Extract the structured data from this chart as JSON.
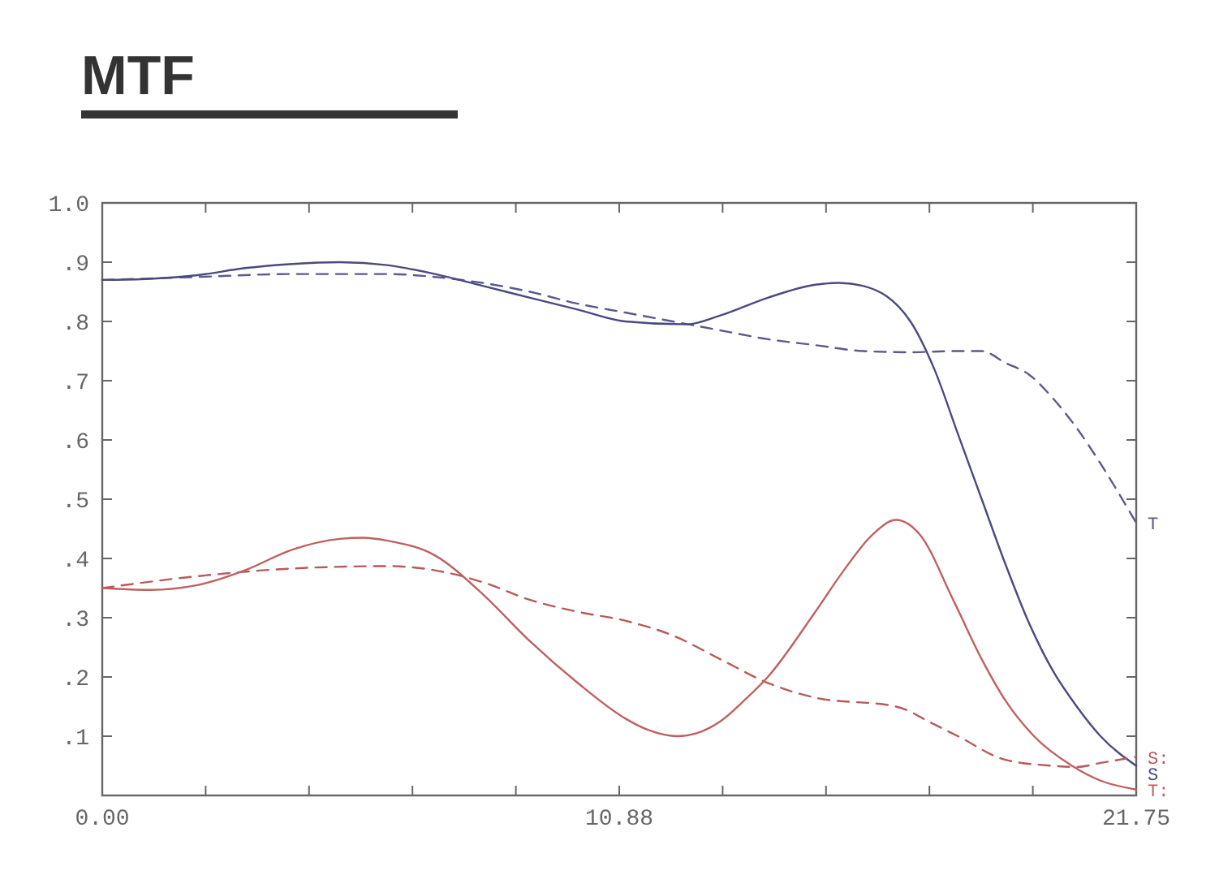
{
  "chart_data": {
    "type": "line",
    "title": "MTF",
    "xlim": [
      0,
      21.75
    ],
    "ylim": [
      0,
      1
    ],
    "xticks": [
      {
        "value": 0,
        "label": "0.00"
      },
      {
        "value": 2.175,
        "label": null
      },
      {
        "value": 4.35,
        "label": null
      },
      {
        "value": 6.525,
        "label": null
      },
      {
        "value": 8.7,
        "label": null
      },
      {
        "value": 10.875,
        "label": "10.88"
      },
      {
        "value": 13.05,
        "label": null
      },
      {
        "value": 15.225,
        "label": null
      },
      {
        "value": 17.4,
        "label": null
      },
      {
        "value": 19.575,
        "label": null
      },
      {
        "value": 21.75,
        "label": "21.75"
      }
    ],
    "yticks": [
      {
        "value": 0,
        "label": null
      },
      {
        "value": 0.1,
        "label": ".1"
      },
      {
        "value": 0.2,
        "label": ".2"
      },
      {
        "value": 0.3,
        "label": ".3"
      },
      {
        "value": 0.4,
        "label": ".4"
      },
      {
        "value": 0.5,
        "label": ".5"
      },
      {
        "value": 0.6,
        "label": ".6"
      },
      {
        "value": 0.7,
        "label": ".7"
      },
      {
        "value": 0.8,
        "label": ".8"
      },
      {
        "value": 0.9,
        "label": ".9"
      },
      {
        "value": 1,
        "label": "1.0"
      }
    ],
    "grid": false,
    "legend": "right",
    "series": [
      {
        "name": "T",
        "color": "#5a5a8c",
        "line_style": "dashed",
        "x": [
          0,
          2,
          4,
          6,
          7,
          8,
          9,
          10,
          11,
          12,
          13,
          14,
          15,
          16,
          17,
          18,
          18.5,
          19,
          19.5,
          20,
          20.5,
          21,
          21.75
        ],
        "values": [
          0.87,
          0.875,
          0.88,
          0.88,
          0.875,
          0.865,
          0.85,
          0.83,
          0.815,
          0.8,
          0.785,
          0.77,
          0.76,
          0.75,
          0.748,
          0.75,
          0.75,
          0.73,
          0.71,
          0.67,
          0.62,
          0.56,
          0.46
        ]
      },
      {
        "name": "S",
        "color": "#4a4a80",
        "line_style": "solid",
        "x": [
          0,
          1,
          2,
          3,
          4,
          5,
          6,
          7,
          8,
          9,
          10,
          11,
          12.3,
          13,
          14,
          15,
          15.5,
          16,
          17,
          17.5,
          18,
          18.5,
          19,
          19.5,
          20,
          20.5,
          21,
          21.75
        ],
        "values": [
          0.87,
          0.872,
          0.878,
          0.89,
          0.897,
          0.9,
          0.895,
          0.88,
          0.86,
          0.84,
          0.82,
          0.8,
          0.795,
          0.81,
          0.84,
          0.862,
          0.865,
          0.86,
          0.8,
          0.72,
          0.61,
          0.5,
          0.39,
          0.29,
          0.21,
          0.15,
          0.1,
          0.05
        ]
      },
      {
        "name": "S:",
        "color": "#b85a5a",
        "line_style": "dashed",
        "x": [
          0,
          2,
          4,
          6,
          7,
          8,
          9,
          10,
          11,
          12,
          13,
          14,
          15,
          16.7,
          17.5,
          18,
          19,
          20,
          20.5,
          21,
          21.75
        ],
        "values": [
          0.35,
          0.37,
          0.383,
          0.387,
          0.38,
          0.36,
          0.33,
          0.31,
          0.295,
          0.27,
          0.23,
          0.19,
          0.165,
          0.15,
          0.12,
          0.1,
          0.06,
          0.05,
          0.048,
          0.055,
          0.065
        ]
      },
      {
        "name": "T:",
        "color": "#c06060",
        "line_style": "solid",
        "x": [
          0,
          1,
          2,
          3,
          4,
          5,
          5.5,
          6,
          7,
          8,
          9,
          10,
          11,
          11.5,
          12.1,
          12.5,
          13,
          13.5,
          14,
          15,
          15.6,
          16.2,
          16.7,
          17.2,
          17.9,
          18.5,
          19,
          19.6,
          20.4,
          21,
          21.75
        ],
        "values": [
          0.35,
          0.347,
          0.355,
          0.38,
          0.415,
          0.433,
          0.435,
          0.43,
          0.405,
          0.34,
          0.26,
          0.19,
          0.13,
          0.11,
          0.1,
          0.105,
          0.125,
          0.16,
          0.2,
          0.31,
          0.38,
          0.44,
          0.465,
          0.44,
          0.33,
          0.23,
          0.16,
          0.1,
          0.05,
          0.025,
          0.01
        ]
      }
    ]
  }
}
